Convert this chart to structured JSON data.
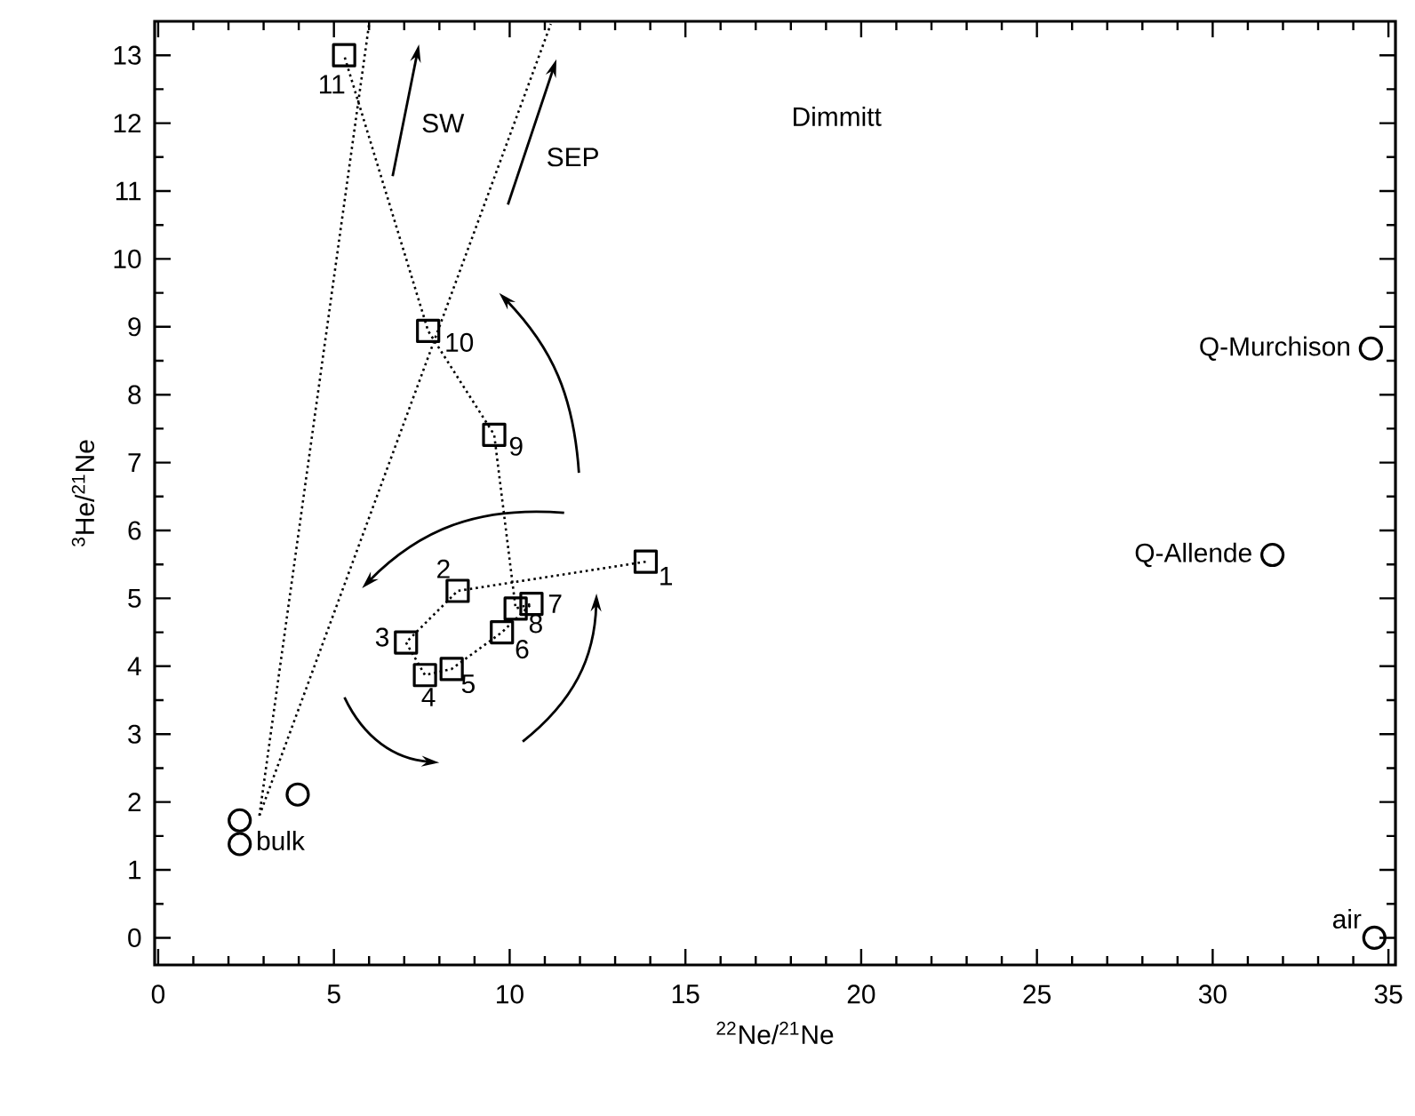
{
  "chart_data": {
    "type": "scatter",
    "xlabel": "$^{22}$Ne/$^{21}$Ne",
    "ylabel": "$^{3}$He/$^{21}$Ne",
    "xlim": [
      -0.1,
      35.2
    ],
    "ylim": [
      -0.4,
      13.5
    ],
    "xticks": [
      0,
      5,
      10,
      15,
      20,
      25,
      30,
      35
    ],
    "yticks": [
      0,
      1,
      2,
      3,
      4,
      5,
      6,
      7,
      8,
      9,
      10,
      11,
      12,
      13
    ],
    "series": [
      {
        "type": "line",
        "marker": "square",
        "line_style": "dotted",
        "color": "#000000",
        "x": [
          13.87,
          8.52,
          7.05,
          7.59,
          8.35,
          9.78,
          10.62,
          10.17,
          9.56,
          7.68,
          5.29
        ],
        "values": [
          5.54,
          5.11,
          4.35,
          3.87,
          3.96,
          4.5,
          4.92,
          4.85,
          7.41,
          8.94,
          13.0
        ]
      },
      {
        "marker": "circle",
        "color": "#000000",
        "x": [
          2.32,
          2.32,
          3.97
        ],
        "values": [
          1.73,
          1.38,
          2.11
        ]
      },
      {
        "marker": "circle",
        "color": "#000000",
        "x": [
          34.5,
          31.7,
          34.6
        ],
        "values": [
          8.68,
          5.64,
          0.0
        ]
      },
      {
        "type": "line",
        "marker": "none",
        "line_style": "dotted",
        "color": "#000000",
        "x": [
          2.88,
          6.0
        ],
        "values": [
          1.8,
          13.46
        ]
      },
      {
        "type": "line",
        "marker": "none",
        "line_style": "dotted",
        "color": "#000000",
        "x": [
          2.88,
          11.17
        ],
        "values": [
          1.8,
          13.46
        ]
      }
    ],
    "annotations": [
      "Dimmitt",
      "SW",
      "SEP",
      {
        "text": "1",
        "x": 13.87,
        "y": 5.54
      },
      {
        "text": "2",
        "x": 8.52,
        "y": 5.11
      },
      {
        "text": "3",
        "x": 7.05,
        "y": 4.35
      },
      {
        "text": "4",
        "x": 7.59,
        "y": 3.87
      },
      {
        "text": "5",
        "x": 8.35,
        "y": 3.96
      },
      {
        "text": "6",
        "x": 9.78,
        "y": 4.5
      },
      {
        "text": "7",
        "x": 10.62,
        "y": 4.92
      },
      {
        "text": "8",
        "x": 10.17,
        "y": 4.85
      },
      {
        "text": "9",
        "x": 9.56,
        "y": 7.41
      },
      {
        "text": "10",
        "x": 7.68,
        "y": 8.94
      },
      {
        "text": "11",
        "x": 5.29,
        "y": 13.0
      },
      {
        "text": "bulk",
        "x": 2.32,
        "y": 1.38
      },
      {
        "text": "Q-Murchison",
        "x": 34.5,
        "y": 8.68
      },
      {
        "text": "Q-Allende",
        "x": 31.7,
        "y": 5.64
      },
      {
        "text": "air",
        "x": 34.6,
        "y": 0.0
      }
    ]
  }
}
